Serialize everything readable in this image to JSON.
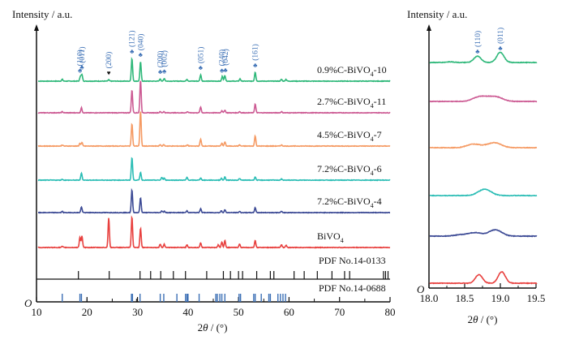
{
  "chart_data": [
    {
      "type": "line",
      "panel": "left",
      "title": "",
      "ylabel": "Intensity / a.u.",
      "xlabel": "2θ / (°)",
      "xlim": [
        10,
        80
      ],
      "x_ticks": [
        10,
        20,
        30,
        40,
        50,
        60,
        70,
        80
      ],
      "origin_label": "O",
      "series": [
        {
          "name": "0.9%C-BiVO4-10",
          "label_main": "0.9%C-BiVO",
          "label_sub": "4",
          "label_tail": "-10",
          "color": "#2fb87a",
          "peaks": [
            [
              15.1,
              0.08
            ],
            [
              18.7,
              0.22
            ],
            [
              19.0,
              0.28
            ],
            [
              24.3,
              0.06
            ],
            [
              28.9,
              1.0
            ],
            [
              30.6,
              0.85
            ],
            [
              34.5,
              0.1
            ],
            [
              35.3,
              0.12
            ],
            [
              39.8,
              0.08
            ],
            [
              42.5,
              0.28
            ],
            [
              46.8,
              0.22
            ],
            [
              47.3,
              0.25
            ],
            [
              50.3,
              0.1
            ],
            [
              53.3,
              0.4
            ],
            [
              58.5,
              0.08
            ],
            [
              59.4,
              0.08
            ]
          ]
        },
        {
          "name": "2.7%C-BiVO4-11",
          "label_main": "2.7%C-BiVO",
          "label_sub": "4",
          "label_tail": "-11",
          "color": "#cc5a93",
          "peaks": [
            [
              15.1,
              0.05
            ],
            [
              18.9,
              0.22
            ],
            [
              28.9,
              1.0
            ],
            [
              30.6,
              1.45
            ],
            [
              34.5,
              0.05
            ],
            [
              35.2,
              0.05
            ],
            [
              39.9,
              0.05
            ],
            [
              42.5,
              0.25
            ],
            [
              46.7,
              0.1
            ],
            [
              47.3,
              0.12
            ],
            [
              50.2,
              0.05
            ],
            [
              53.3,
              0.38
            ],
            [
              58.5,
              0.05
            ]
          ]
        },
        {
          "name": "4.5%C-BiVO4-7",
          "label_main": "4.5%C-BiVO",
          "label_sub": "4",
          "label_tail": "-7",
          "color": "#f59a63",
          "peaks": [
            [
              15.1,
              0.05
            ],
            [
              18.6,
              0.12
            ],
            [
              19.0,
              0.15
            ],
            [
              28.9,
              1.0
            ],
            [
              30.6,
              1.55
            ],
            [
              34.5,
              0.06
            ],
            [
              35.2,
              0.06
            ],
            [
              39.9,
              0.05
            ],
            [
              42.5,
              0.3
            ],
            [
              46.7,
              0.12
            ],
            [
              47.3,
              0.18
            ],
            [
              50.2,
              0.05
            ],
            [
              53.3,
              0.45
            ],
            [
              58.5,
              0.05
            ]
          ]
        },
        {
          "name": "7.2%C-BiVO4-6",
          "label_main": "7.2%C-BiVO",
          "label_sub": "4",
          "label_tail": "-6",
          "color": "#2bbdb5",
          "peaks": [
            [
              15.1,
              0.04
            ],
            [
              18.9,
              0.32
            ],
            [
              28.9,
              1.0
            ],
            [
              30.6,
              0.35
            ],
            [
              34.8,
              0.12
            ],
            [
              35.3,
              0.1
            ],
            [
              39.8,
              0.12
            ],
            [
              42.5,
              0.1
            ],
            [
              46.6,
              0.08
            ],
            [
              47.3,
              0.14
            ],
            [
              50.2,
              0.07
            ],
            [
              53.3,
              0.14
            ],
            [
              58.5,
              0.05
            ]
          ]
        },
        {
          "name": "7.2%C-BiVO4-4",
          "label_main": "7.2%C-BiVO",
          "label_sub": "4",
          "label_tail": "-4",
          "color": "#3c4a95",
          "peaks": [
            [
              15.1,
              0.05
            ],
            [
              18.9,
              0.25
            ],
            [
              28.9,
              1.0
            ],
            [
              30.6,
              0.65
            ],
            [
              34.8,
              0.08
            ],
            [
              35.3,
              0.06
            ],
            [
              39.8,
              0.08
            ],
            [
              42.5,
              0.18
            ],
            [
              46.6,
              0.08
            ],
            [
              47.3,
              0.12
            ],
            [
              50.2,
              0.05
            ],
            [
              53.3,
              0.22
            ],
            [
              58.5,
              0.05
            ]
          ]
        },
        {
          "name": "BiVO4",
          "label_main": "BiVO",
          "label_sub": "4",
          "label_tail": "",
          "color": "#e8413f",
          "peaks": [
            [
              15.1,
              0.05
            ],
            [
              18.6,
              0.45
            ],
            [
              19.0,
              0.5
            ],
            [
              24.3,
              1.3
            ],
            [
              28.9,
              1.35
            ],
            [
              30.6,
              0.85
            ],
            [
              34.5,
              0.15
            ],
            [
              35.3,
              0.15
            ],
            [
              39.8,
              0.12
            ],
            [
              42.5,
              0.2
            ],
            [
              46.0,
              0.12
            ],
            [
              46.7,
              0.25
            ],
            [
              47.3,
              0.3
            ],
            [
              50.2,
              0.15
            ],
            [
              53.3,
              0.3
            ],
            [
              58.5,
              0.12
            ],
            [
              59.4,
              0.1
            ]
          ]
        }
      ],
      "reference_patterns": [
        {
          "name": "PDF No.14-0133",
          "color": "#111111",
          "positions": [
            18.3,
            24.4,
            30.5,
            32.6,
            34.6,
            37.1,
            39.5,
            43.7,
            47.0,
            48.4,
            50.0,
            50.8,
            53.6,
            56.3,
            57.0,
            61.0,
            63.0,
            65.6,
            68.5,
            71.0,
            72.0,
            78.7,
            79.1,
            79.6
          ]
        },
        {
          "name": "PDF No.14-0688",
          "color": "#3b6fb5",
          "positions": [
            15.1,
            18.6,
            18.9,
            28.8,
            29.0,
            30.5,
            34.5,
            35.2,
            37.8,
            39.5,
            39.8,
            40.0,
            42.2,
            45.5,
            45.8,
            46.3,
            46.7,
            47.3,
            50.1,
            50.4,
            53.0,
            53.3,
            54.5,
            56.0,
            56.3,
            57.8,
            58.3,
            58.8,
            59.3
          ],
          "extra_black_ticks": [
            20.0,
            25.0,
            29.8,
            45.0,
            55.0,
            60.0,
            65.0,
            75.0
          ]
        }
      ],
      "annotations": [
        {
          "text": "(110)",
          "x": 18.6,
          "series": "0.9%C-BiVO4-10",
          "marker": "club"
        },
        {
          "text": "(011)",
          "x": 19.0,
          "series": "0.9%C-BiVO4-10",
          "marker": "club"
        },
        {
          "text": "(200)",
          "x": 24.3,
          "series": "0.9%C-BiVO4-10",
          "marker": "heart",
          "color": "#111111"
        },
        {
          "text": "(121)",
          "x": 28.9,
          "series": "0.9%C-BiVO4-10",
          "marker": "club"
        },
        {
          "text": "(040)",
          "x": 30.6,
          "series": "0.9%C-BiVO4-10",
          "marker": "club"
        },
        {
          "text": "(200)",
          "x": 34.5,
          "series": "0.9%C-BiVO4-10",
          "marker": "club"
        },
        {
          "text": "(002)",
          "x": 35.3,
          "series": "0.9%C-BiVO4-10",
          "marker": "club"
        },
        {
          "text": "(051)",
          "x": 42.5,
          "series": "0.9%C-BiVO4-10",
          "marker": "club"
        },
        {
          "text": "(240)",
          "x": 46.7,
          "series": "0.9%C-BiVO4-10",
          "marker": "club"
        },
        {
          "text": "(042)",
          "x": 47.4,
          "series": "0.9%C-BiVO4-10",
          "marker": "club"
        },
        {
          "text": "(161)",
          "x": 53.3,
          "series": "0.9%C-BiVO4-10",
          "marker": "club"
        }
      ]
    },
    {
      "type": "line",
      "panel": "right",
      "title": "",
      "ylabel": "Intensity / a.u.",
      "xlabel": "2θ / (°)",
      "xlim": [
        18.0,
        19.5
      ],
      "x_ticks": [
        "18.0",
        "18.5",
        "19.0",
        "19.5"
      ],
      "origin_label": "O",
      "series": [
        {
          "name": "0.9%C-BiVO4-10",
          "color": "#2fb87a",
          "peaks": [
            [
              18.3,
              0.06
            ],
            [
              18.68,
              0.55
            ],
            [
              19.0,
              0.9
            ]
          ]
        },
        {
          "name": "2.7%C-BiVO4-11",
          "color": "#cc5a93",
          "peaks": [
            [
              18.7,
              0.35
            ],
            [
              18.95,
              0.35
            ],
            [
              18.82,
              0.2
            ]
          ]
        },
        {
          "name": "4.5%C-BiVO4-7",
          "color": "#f59a63",
          "peaks": [
            [
              18.62,
              0.3
            ],
            [
              18.93,
              0.4
            ],
            [
              18.8,
              0.1
            ]
          ]
        },
        {
          "name": "7.2%C-BiVO4-6",
          "color": "#2bbdb5",
          "peaks": [
            [
              18.78,
              0.55
            ]
          ]
        },
        {
          "name": "7.2%C-BiVO4-4",
          "color": "#3c4a95",
          "peaks": [
            [
              18.65,
              0.3
            ],
            [
              18.93,
              0.55
            ],
            [
              18.45,
              0.12
            ]
          ]
        },
        {
          "name": "BiVO4",
          "color": "#e8413f",
          "peaks": [
            [
              18.7,
              0.75
            ],
            [
              19.02,
              1.0
            ]
          ]
        }
      ],
      "annotations": [
        {
          "text": "(110)",
          "x": 18.68,
          "series": "0.9%C-BiVO4-10",
          "marker": "club"
        },
        {
          "text": "(011)",
          "x": 19.0,
          "series": "0.9%C-BiVO4-10",
          "marker": "club"
        }
      ]
    }
  ]
}
